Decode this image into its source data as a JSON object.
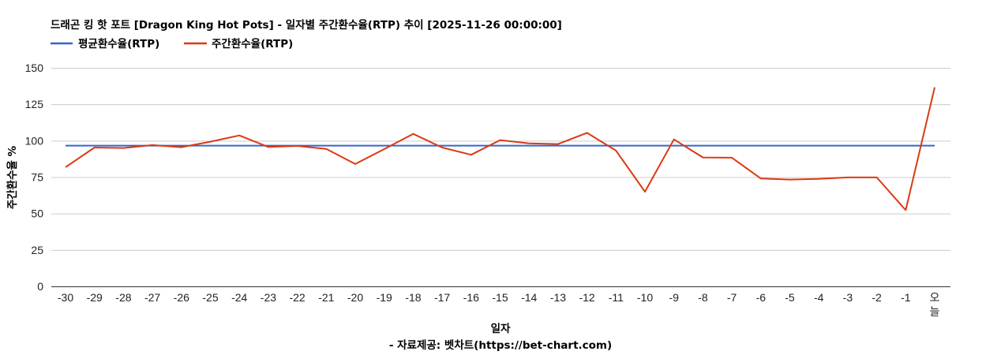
{
  "chart_data": {
    "type": "line",
    "title": "드래곤 킹 핫 포트 [Dragon King Hot Pots] - 일자별 주간환수율(RTP) 추이 [2025-11-26 00:00:00]",
    "xlabel": "일자",
    "ylabel": "주간환수율 %",
    "ylim": [
      0,
      150
    ],
    "yticks": [
      0,
      25,
      50,
      75,
      100,
      125,
      150
    ],
    "grid": true,
    "legend_position": "top-left",
    "categories": [
      "-30",
      "-29",
      "-28",
      "-27",
      "-26",
      "-25",
      "-24",
      "-23",
      "-22",
      "-21",
      "-20",
      "-19",
      "-18",
      "-17",
      "-16",
      "-15",
      "-14",
      "-13",
      "-12",
      "-11",
      "-10",
      "-9",
      "-8",
      "-7",
      "-6",
      "-5",
      "-4",
      "-3",
      "-2",
      "-1",
      "오늘"
    ],
    "series": [
      {
        "name": "평균환수율(RTP)",
        "color": "#3366cc",
        "values": [
          96.6,
          96.6,
          96.6,
          96.6,
          96.6,
          96.6,
          96.6,
          96.6,
          96.6,
          96.6,
          96.6,
          96.6,
          96.6,
          96.6,
          96.6,
          96.6,
          96.6,
          96.6,
          96.6,
          96.6,
          96.6,
          96.6,
          96.6,
          96.6,
          96.6,
          96.6,
          96.6,
          96.6,
          96.6,
          96.6,
          96.6
        ]
      },
      {
        "name": "주간환수율(RTP)",
        "color": "#dc3912",
        "values": [
          81.8,
          95.3,
          95.0,
          97.0,
          95.5,
          99.3,
          103.6,
          95.7,
          96.4,
          94.4,
          84.0,
          94.2,
          104.7,
          95.3,
          90.3,
          100.4,
          98.2,
          97.7,
          105.4,
          93.2,
          65.0,
          100.9,
          88.5,
          88.3,
          74.0,
          73.3,
          73.8,
          74.8,
          74.8,
          52.3,
          136.6
        ]
      }
    ],
    "source_note": "- 자료제공: 벳차트(https://bet-chart.com)"
  }
}
